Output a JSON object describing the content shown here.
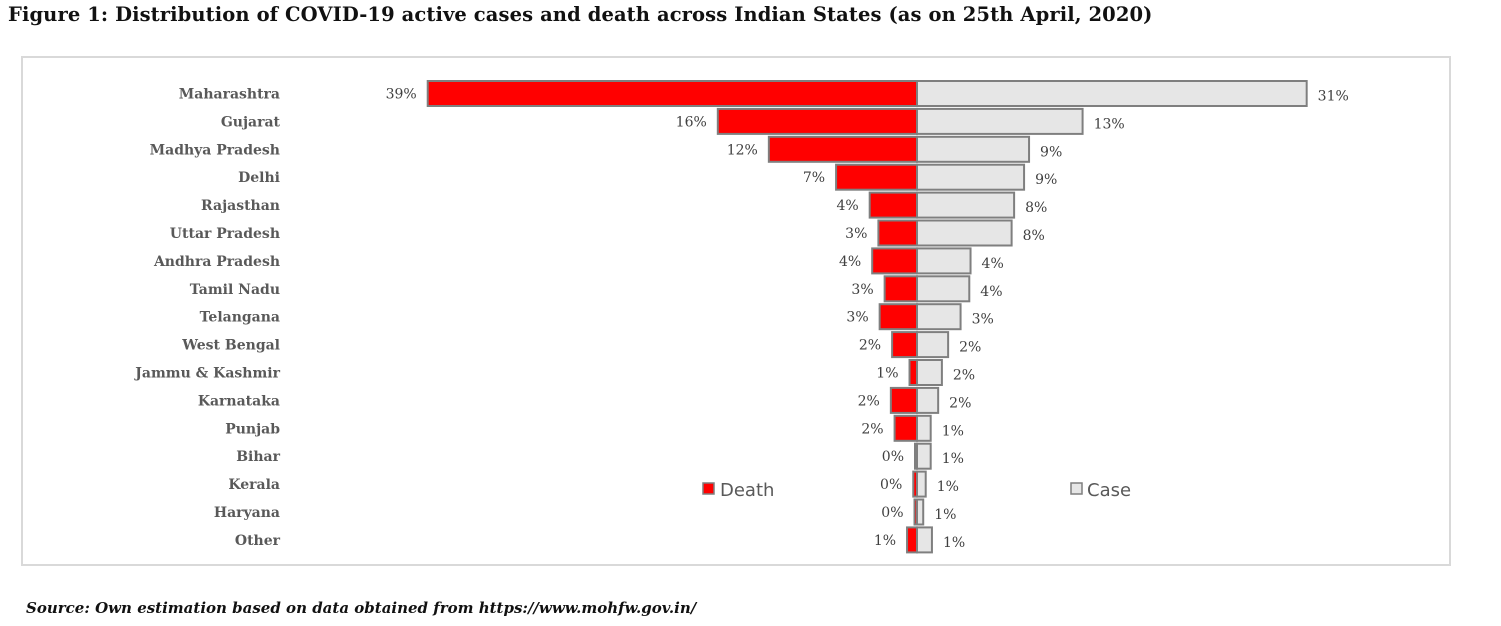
{
  "figure": {
    "title": "Figure 1: Distribution of COVID-19 active cases and death across Indian States (as on 25th April, 2020)",
    "source": "Source: Own estimation based on data obtained from https://www.mohfw.gov.in/"
  },
  "chart_data": {
    "type": "bar",
    "orientation": "horizontal-butterfly",
    "categories": [
      "Maharashtra",
      "Gujarat",
      "Madhya Pradesh",
      "Delhi",
      "Rajasthan",
      "Uttar Pradesh",
      "Andhra Pradesh",
      "Tamil Nadu",
      "Telangana",
      "West Bengal",
      "Jammu & Kashmir",
      "Karnataka",
      "Punjab",
      "Bihar",
      "Kerala",
      "Haryana",
      "Other"
    ],
    "series": [
      {
        "name": "Death",
        "side": "left",
        "color": "#ff0000",
        "values": [
          39.3,
          16.0,
          11.9,
          6.5,
          3.8,
          3.1,
          3.6,
          2.6,
          3.0,
          2.0,
          0.6,
          2.1,
          1.8,
          0.1,
          0.3,
          0.2,
          0.8
        ],
        "labels": [
          "39%",
          "16%",
          "12%",
          "7%",
          "4%",
          "3%",
          "4%",
          "3%",
          "3%",
          "2%",
          "1%",
          "2%",
          "2%",
          "0%",
          "0%",
          "0%",
          "1%"
        ]
      },
      {
        "name": "Case",
        "side": "right",
        "color": "#e6e6e6",
        "values": [
          31.3,
          13.3,
          9.0,
          8.6,
          7.8,
          7.6,
          4.3,
          4.2,
          3.5,
          2.5,
          2.0,
          1.7,
          1.1,
          1.1,
          0.7,
          0.5,
          1.2
        ],
        "labels": [
          "31%",
          "13%",
          "9%",
          "9%",
          "8%",
          "8%",
          "4%",
          "4%",
          "3%",
          "2%",
          "2%",
          "2%",
          "1%",
          "1%",
          "1%",
          "1%",
          "1%"
        ]
      }
    ],
    "xlabel": "",
    "ylabel": "",
    "legend_position": "center-bottom",
    "grid": false,
    "bar_outline_color": "#7f7f7f"
  }
}
